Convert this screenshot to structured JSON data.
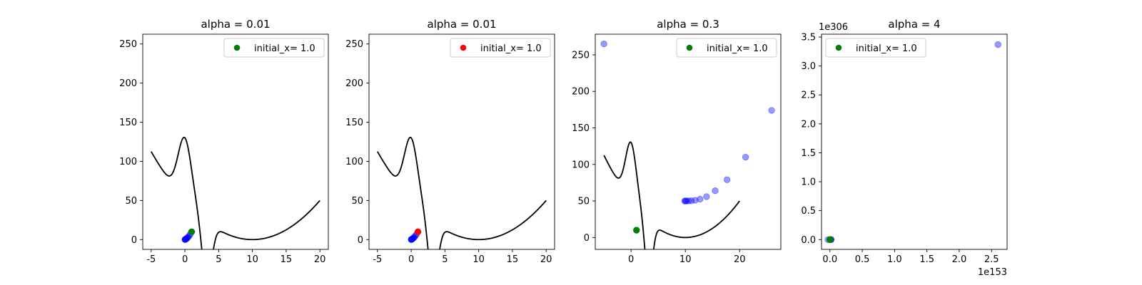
{
  "chart_data": [
    {
      "type": "scatter",
      "title": "alpha = 0.01",
      "xlabel": "",
      "ylabel": "",
      "xlim": [
        -6.25,
        21.25
      ],
      "ylim": [
        -12.5,
        262.5
      ],
      "xticks": [
        -5,
        0,
        5,
        10,
        15,
        20
      ],
      "yticks": [
        0,
        50,
        100,
        150,
        200,
        250
      ],
      "x_offset_label": "",
      "y_offset_label": "",
      "legend": {
        "label": "initial_x= 1.0",
        "marker_color": "#008000",
        "loc": "upper right"
      },
      "curve": {
        "color": "#000000",
        "x_range": [
          -5,
          20
        ]
      },
      "series": [
        {
          "name": "initial_x= 1.0",
          "color": "#008000",
          "alpha": 1.0,
          "points": [
            [
              1.0,
              10
            ]
          ]
        },
        {
          "name": "",
          "color": "#0000ff",
          "alpha": 0.4,
          "points": [
            [
              0.8,
              7
            ],
            [
              0.65,
              5
            ],
            [
              0.5,
              3.5
            ],
            [
              0.4,
              2.5
            ],
            [
              0.3,
              1.8
            ],
            [
              0.22,
              1.2
            ],
            [
              0.15,
              0.8
            ],
            [
              0.1,
              0.5
            ],
            [
              0.05,
              0.3
            ],
            [
              0.02,
              0.1
            ],
            [
              0.0,
              0.0
            ]
          ]
        }
      ]
    },
    {
      "type": "scatter",
      "title": "alpha = 0.01",
      "xlabel": "",
      "ylabel": "",
      "xlim": [
        -6.25,
        21.25
      ],
      "ylim": [
        -12.5,
        262.5
      ],
      "xticks": [
        -5,
        0,
        5,
        10,
        15,
        20
      ],
      "yticks": [
        0,
        50,
        100,
        150,
        200,
        250
      ],
      "x_offset_label": "",
      "y_offset_label": "",
      "legend": {
        "label": "initial_x= 1.0",
        "marker_color": "#ff0000",
        "loc": "upper right"
      },
      "curve": {
        "color": "#000000",
        "x_range": [
          -5,
          20
        ]
      },
      "series": [
        {
          "name": "initial_x= 1.0",
          "color": "#ff0000",
          "alpha": 1.0,
          "points": [
            [
              1.0,
              10
            ]
          ]
        },
        {
          "name": "",
          "color": "#0000ff",
          "alpha": 0.4,
          "points": [
            [
              0.8,
              7
            ],
            [
              0.65,
              5
            ],
            [
              0.5,
              3.5
            ],
            [
              0.4,
              2.5
            ],
            [
              0.3,
              1.8
            ],
            [
              0.22,
              1.2
            ],
            [
              0.15,
              0.8
            ],
            [
              0.1,
              0.5
            ],
            [
              0.05,
              0.3
            ],
            [
              0.02,
              0.1
            ],
            [
              0.0,
              0.0
            ]
          ]
        }
      ]
    },
    {
      "type": "scatter",
      "title": "alpha = 0.3",
      "xlabel": "",
      "ylabel": "",
      "xlim": [
        -6.6,
        27.6
      ],
      "ylim": [
        -16.25,
        278.25
      ],
      "xticks": [
        0,
        10,
        20
      ],
      "yticks": [
        0,
        50,
        100,
        150,
        200,
        250
      ],
      "x_offset_label": "",
      "y_offset_label": "",
      "legend": {
        "label": "initial_x= 1.0",
        "marker_color": "#008000",
        "loc": "upper right"
      },
      "curve": {
        "color": "#000000",
        "x_range": [
          -5,
          20
        ]
      },
      "series": [
        {
          "name": "initial_x= 1.0",
          "color": "#008000",
          "alpha": 1.0,
          "points": [
            [
              1.0,
              10
            ]
          ]
        },
        {
          "name": "",
          "color": "#0000ff",
          "alpha": 0.4,
          "points": [
            [
              -5.0,
              265
            ],
            [
              25.9,
              174
            ],
            [
              21.1,
              110
            ],
            [
              17.7,
              79
            ],
            [
              15.5,
              64
            ],
            [
              13.9,
              56
            ],
            [
              12.7,
              52.5
            ],
            [
              11.8,
              51
            ],
            [
              11.1,
              50.3
            ],
            [
              10.6,
              50.1
            ],
            [
              10.2,
              50
            ],
            [
              10.0,
              50
            ],
            [
              9.9,
              50
            ]
          ]
        }
      ]
    },
    {
      "type": "scatter",
      "title": "alpha = 4",
      "xlabel": "",
      "ylabel": "",
      "xlim": [
        -0.13,
        2.74
      ],
      "ylim": [
        -0.169,
        3.549
      ],
      "xticks": [
        0,
        0.5,
        1.0,
        1.5,
        2.0,
        2.5
      ],
      "xtick_labels": [
        "0.0",
        "0.5",
        "1.0",
        "1.5",
        "2.0",
        "2.5"
      ],
      "yticks": [
        0,
        0.5,
        1.0,
        1.5,
        2.0,
        2.5,
        3.0,
        3.5
      ],
      "ytick_labels": [
        "0.0",
        "0.5",
        "1.0",
        "1.5",
        "2.0",
        "2.5",
        "3.0",
        "3.5"
      ],
      "x_offset_label": "1e153",
      "y_offset_label": "1e306",
      "legend": {
        "label": "initial_x= 1.0",
        "marker_color": "#008000",
        "loc": "upper left"
      },
      "curve": null,
      "series": [
        {
          "name": "initial_x= 1.0",
          "color": "#008000",
          "alpha": 1.0,
          "points": [
            [
              0.0,
              0.0
            ]
          ]
        },
        {
          "name": "",
          "color": "#0000ff",
          "alpha": 0.4,
          "points": [
            [
              2.6,
              3.37
            ],
            [
              -0.03,
              0.0
            ],
            [
              0.0,
              0.0
            ],
            [
              0.01,
              0.0
            ],
            [
              0.02,
              0.0
            ],
            [
              0.005,
              0.0
            ],
            [
              0.015,
              0.0
            ]
          ]
        }
      ]
    }
  ]
}
